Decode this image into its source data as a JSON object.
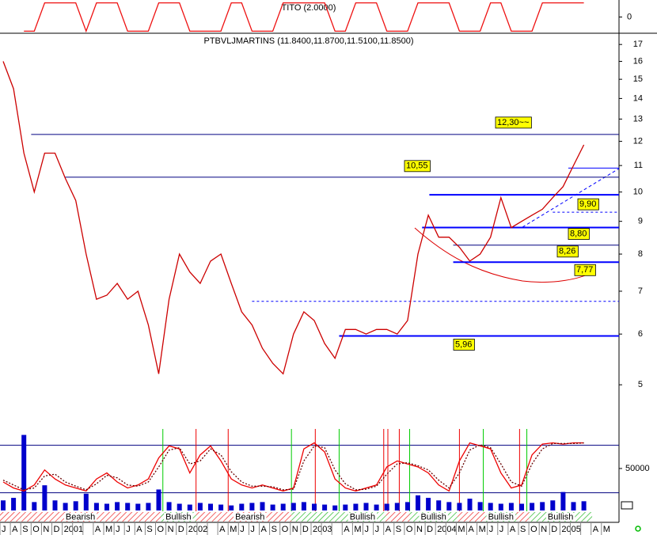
{
  "chart_data": [
    {
      "type": "line",
      "title": "TITO (2.0000)",
      "ylim": [
        -1.2,
        1.2
      ],
      "yticks": [
        0
      ],
      "series": [
        {
          "color": "#ee1111",
          "values": [
            null,
            null,
            -1,
            -1,
            1,
            1,
            1,
            1,
            -1,
            1,
            1,
            1,
            -1,
            -1,
            -1,
            1,
            1,
            1,
            -1,
            -1,
            -1,
            -1,
            1,
            1,
            -1,
            -1,
            -1,
            1,
            1,
            1,
            1,
            1,
            -1,
            -1,
            1,
            1,
            1,
            -1,
            -1,
            -1,
            1,
            1,
            1,
            1,
            -1,
            -1,
            -1,
            1,
            1,
            -1,
            -1,
            -1,
            1,
            1,
            1,
            1,
            1,
            null,
            null
          ]
        }
      ]
    },
    {
      "type": "line",
      "title": "PTBVLJMARTINS (11.8400,11.8700,11.5100,11.8500)",
      "log": true,
      "ylim": [
        4.29,
        17.6
      ],
      "yticks": [
        5,
        6,
        7,
        8,
        9,
        10,
        11,
        12,
        13,
        14,
        15,
        16,
        17
      ],
      "series": [
        {
          "color": "#cc0000",
          "values": [
            16,
            14.5,
            11.5,
            10,
            11.5,
            11.5,
            10.5,
            9.7,
            8,
            6.8,
            6.9,
            7.2,
            6.8,
            7,
            6.2,
            5.2,
            6.8,
            8,
            7.5,
            7.2,
            7.8,
            8,
            7.2,
            6.5,
            6.2,
            5.7,
            5.4,
            5.2,
            6,
            6.5,
            6.3,
            5.8,
            5.5,
            6.1,
            6.1,
            6,
            6.1,
            6.1,
            6,
            6.3,
            8,
            9.2,
            8.5,
            8.5,
            8.2,
            7.8,
            8,
            8.5,
            9.8,
            8.8,
            9,
            9.2,
            9.4,
            9.8,
            10.2,
            11,
            11.85,
            null,
            null
          ]
        }
      ],
      "levels": [
        {
          "value": 12.3,
          "label": "12,30~~",
          "from": 2.7,
          "color": "#000080",
          "width": 1
        },
        {
          "value": 10.55,
          "label": "10,55",
          "from": 6,
          "color": "#000080",
          "width": 1
        },
        {
          "value": 10.9,
          "from": 54.5,
          "color": "#0000ff",
          "width": 1
        },
        {
          "value": 9.9,
          "label": "9,90",
          "from": 41.1,
          "color": "#0000ff",
          "width": 2
        },
        {
          "value": 9.3,
          "from": 53,
          "color": "#0000ff",
          "width": 1,
          "dashed": true
        },
        {
          "value": 8.8,
          "label": "8,80",
          "from": 40.4,
          "color": "#0000ff",
          "width": 2
        },
        {
          "value": 8.26,
          "label": "8,26",
          "from": 43.4,
          "color": "#000080",
          "width": 1
        },
        {
          "value": 7.77,
          "label": "7,77",
          "from": 43.4,
          "color": "#0000ff",
          "width": 2
        },
        {
          "value": 6.75,
          "from": 24,
          "color": "#0000ff",
          "width": 1,
          "dashed": true
        },
        {
          "value": 5.96,
          "label": "5,96",
          "from": 32.4,
          "color": "#0000ff",
          "width": 2
        }
      ]
    },
    {
      "type": "line",
      "ylim": [
        0,
        100
      ],
      "levels": [
        86,
        7
      ],
      "series": [
        {
          "color": "#ee0000",
          "values": [
            25,
            15,
            10,
            20,
            45,
            30,
            20,
            15,
            10,
            30,
            40,
            25,
            15,
            20,
            30,
            65,
            85,
            80,
            40,
            70,
            85,
            60,
            30,
            20,
            15,
            20,
            15,
            10,
            15,
            80,
            90,
            75,
            30,
            15,
            10,
            15,
            20,
            50,
            60,
            55,
            50,
            40,
            20,
            10,
            60,
            90,
            85,
            80,
            40,
            15,
            20,
            70,
            88,
            90,
            88,
            90,
            90,
            null,
            null
          ]
        },
        {
          "color": "#660000",
          "dashed": true,
          "values": [
            28,
            20,
            12,
            15,
            35,
            38,
            25,
            18,
            12,
            22,
            36,
            32,
            20,
            18,
            25,
            50,
            78,
            82,
            55,
            60,
            80,
            70,
            42,
            25,
            18,
            18,
            17,
            12,
            13,
            60,
            85,
            82,
            45,
            22,
            12,
            13,
            18,
            38,
            55,
            57,
            52,
            45,
            28,
            15,
            40,
            78,
            87,
            82,
            55,
            25,
            18,
            55,
            80,
            89,
            89,
            89,
            90,
            null,
            null
          ]
        }
      ],
      "signals": [
        {
          "x": 15.4,
          "color": "#00cc00"
        },
        {
          "x": 27.8,
          "color": "#00cc00"
        },
        {
          "x": 32.4,
          "color": "#00cc00"
        },
        {
          "x": 39.2,
          "color": "#00cc00"
        },
        {
          "x": 46.3,
          "color": "#00cc00"
        },
        {
          "x": 50.5,
          "color": "#00cc00"
        },
        {
          "x": 18.6,
          "color": "#ee0000"
        },
        {
          "x": 21.7,
          "color": "#ee0000"
        },
        {
          "x": 30.1,
          "color": "#ee0000"
        },
        {
          "x": 36.7,
          "color": "#ee0000"
        },
        {
          "x": 37.1,
          "color": "#ee0000"
        },
        {
          "x": 38.2,
          "color": "#ee0000"
        },
        {
          "x": 44,
          "color": "#ee0000"
        },
        {
          "x": 49.8,
          "color": "#ee0000"
        }
      ],
      "regions": [
        {
          "label": "Bearish",
          "from": -0.5,
          "to": 15.2,
          "color": "#ee3333"
        },
        {
          "label": "Bullish",
          "from": 15.2,
          "to": 18.6,
          "color": "#33bb33"
        },
        {
          "label": null,
          "from": 18.6,
          "to": 19.8,
          "color": "#ee3333"
        },
        {
          "label": "Bearish",
          "from": 19.8,
          "to": 27.8,
          "color": "#ee3333"
        },
        {
          "label": null,
          "from": 27.8,
          "to": 32.4,
          "color": "#33bb33"
        },
        {
          "label": "Bullish",
          "from": 32.4,
          "to": 36.9,
          "color": "#33bb33"
        },
        {
          "label": null,
          "from": 36.9,
          "to": 39.2,
          "color": "#ee3333"
        },
        {
          "label": "Bullish",
          "from": 39.2,
          "to": 43.8,
          "color": "#33bb33"
        },
        {
          "label": null,
          "from": 43.8,
          "to": 46.5,
          "color": "#ee3333"
        },
        {
          "label": "Bullish",
          "from": 46.5,
          "to": 49.5,
          "color": "#33bb33"
        },
        {
          "label": null,
          "from": 49.5,
          "to": 50.7,
          "color": "#ee3333"
        },
        {
          "label": "Bullish",
          "from": 50.7,
          "to": 56.8,
          "color": "#33bb33"
        }
      ]
    },
    {
      "type": "bar",
      "ylim": [
        0,
        99000
      ],
      "yticks": [
        50000
      ],
      "color": "#0000cc",
      "categories": [
        "J",
        "A",
        "S",
        "O",
        "N",
        "D",
        "2001",
        null,
        null,
        "A",
        "M",
        "J",
        "J",
        "A",
        "S",
        "O",
        "N",
        "D",
        "2002",
        null,
        null,
        "A",
        "M",
        "J",
        "J",
        "A",
        "S",
        "O",
        "N",
        "D",
        "2003",
        null,
        null,
        "A",
        "M",
        "J",
        "J",
        "A",
        "S",
        "O",
        "N",
        "D",
        "2004",
        null,
        "M",
        "A",
        "M",
        "J",
        "J",
        "A",
        "S",
        "O",
        "N",
        "D",
        "2005",
        null,
        null,
        "A",
        "M"
      ],
      "values": [
        12000,
        15000,
        90000,
        10000,
        30000,
        12000,
        9000,
        11000,
        20000,
        9000,
        8000,
        10000,
        9000,
        8000,
        9000,
        25000,
        10000,
        8000,
        7000,
        9000,
        8000,
        7000,
        6000,
        8000,
        9000,
        10000,
        7000,
        8000,
        9000,
        10000,
        8000,
        7000,
        6000,
        7000,
        8000,
        9000,
        7000,
        8000,
        9000,
        10000,
        18000,
        15000,
        12000,
        10000,
        9000,
        14000,
        10000,
        9000,
        8000,
        9000,
        8000,
        9000,
        10000,
        12000,
        22000,
        10000,
        11000,
        null,
        null
      ]
    }
  ]
}
